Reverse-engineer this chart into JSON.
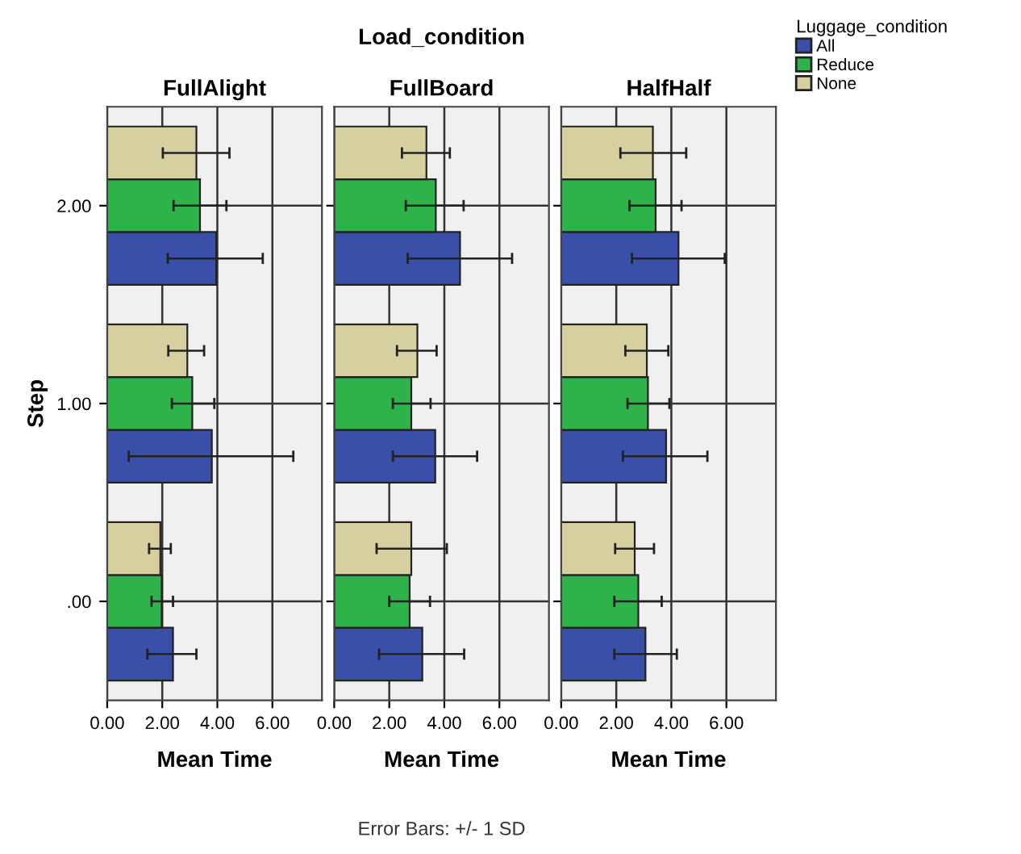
{
  "chart_data": [
    {
      "type": "bar",
      "orientation": "horizontal",
      "title": "FullAlight",
      "xlabel": "Mean Time",
      "ylabel": "Step",
      "categories": [
        "2.00",
        "1.00",
        ".00"
      ],
      "xlim": [
        0,
        7.8
      ],
      "xticks": [
        {
          "value": 0,
          "label": "0.00"
        },
        {
          "value": 2,
          "label": "2.00"
        },
        {
          "value": 4,
          "label": "4.00"
        },
        {
          "value": 6,
          "label": "6.00"
        }
      ],
      "grid": true,
      "legend": "top right",
      "legend_title": "Luggage_condition",
      "annotations": [
        "Load_condition",
        "Error Bars: +/- 1 SD"
      ],
      "series": [
        {
          "name": "All",
          "color": "#3a4fa8",
          "values": [
            3.96,
            3.8,
            2.39
          ],
          "errors": [
            [
              2.2,
              5.65
            ],
            [
              0.78,
              6.76
            ],
            [
              1.46,
              3.24
            ]
          ]
        },
        {
          "name": "Reduce",
          "color": "#2db34a",
          "values": [
            3.37,
            3.09,
            1.98
          ],
          "errors": [
            [
              2.41,
              4.33
            ],
            [
              2.35,
              3.89
            ],
            [
              1.61,
              2.39
            ]
          ]
        },
        {
          "name": "None",
          "color": "#d6d0a0",
          "values": [
            3.24,
            2.91,
            1.93
          ],
          "errors": [
            [
              2.02,
              4.44
            ],
            [
              2.22,
              3.52
            ],
            [
              1.52,
              2.31
            ]
          ]
        }
      ]
    },
    {
      "type": "bar",
      "orientation": "horizontal",
      "title": "FullBoard",
      "xlabel": "Mean Time",
      "categories": [
        "2.00",
        "1.00",
        ".00"
      ],
      "tick_labels": "x",
      "xlim": [
        0,
        7.8
      ],
      "xticks": [
        {
          "value": 0,
          "label": "0.00"
        },
        {
          "value": 2,
          "label": "2.00"
        },
        {
          "value": 4,
          "label": "4.00"
        },
        {
          "value": 6,
          "label": "6.00"
        }
      ],
      "grid": true,
      "series": [
        {
          "color": "#3a4fa8",
          "values": [
            4.57,
            3.67,
            3.2
          ],
          "errors": [
            [
              2.67,
              6.46
            ],
            [
              2.13,
              5.19
            ],
            [
              1.63,
              4.72
            ]
          ]
        },
        {
          "color": "#2db34a",
          "values": [
            3.69,
            2.8,
            2.74
          ],
          "errors": [
            [
              2.6,
              4.7
            ],
            [
              2.13,
              3.5
            ],
            [
              2.0,
              3.48
            ]
          ]
        },
        {
          "color": "#d6d0a0",
          "values": [
            3.35,
            3.02,
            2.8
          ],
          "errors": [
            [
              2.46,
              4.2
            ],
            [
              2.28,
              3.72
            ],
            [
              1.54,
              4.09
            ]
          ]
        }
      ]
    },
    {
      "type": "bar",
      "orientation": "horizontal",
      "title": "HalfHalf",
      "xlabel": "Mean Time",
      "categories": [
        "2.00",
        "1.00",
        ".00"
      ],
      "tick_labels": "x",
      "xlim": [
        0,
        7.8
      ],
      "xticks": [
        {
          "value": 0,
          "label": "0.00"
        },
        {
          "value": 2,
          "label": "2.00"
        },
        {
          "value": 4,
          "label": "4.00"
        },
        {
          "value": 6,
          "label": "6.00"
        }
      ],
      "grid": true,
      "series": [
        {
          "color": "#3a4fa8",
          "values": [
            4.26,
            3.81,
            3.06
          ],
          "errors": [
            [
              2.57,
              5.94
            ],
            [
              2.24,
              5.31
            ],
            [
              1.93,
              4.2
            ]
          ]
        },
        {
          "color": "#2db34a",
          "values": [
            3.43,
            3.15,
            2.8
          ],
          "errors": [
            [
              2.48,
              4.37
            ],
            [
              2.41,
              3.93
            ],
            [
              1.93,
              3.65
            ]
          ]
        },
        {
          "color": "#d6d0a0",
          "values": [
            3.33,
            3.11,
            2.67
          ],
          "errors": [
            [
              2.15,
              4.54
            ],
            [
              2.33,
              3.89
            ],
            [
              1.96,
              3.37
            ]
          ]
        }
      ]
    }
  ]
}
